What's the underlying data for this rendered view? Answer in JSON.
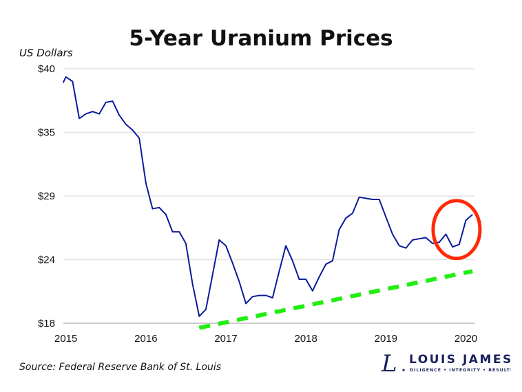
{
  "chart_data": {
    "type": "line",
    "title": "5-Year Uranium Prices",
    "ylabel": "US Dollars",
    "xlabel": "",
    "source": "Source: Federal Reserve Bank of St. Louis",
    "x_start": "2015-01",
    "x_frequency": "monthly",
    "xlim": [
      "2015-01",
      "2020-02"
    ],
    "ylim": [
      18,
      40
    ],
    "x_ticks": [
      "2015",
      "2016",
      "2017",
      "2018",
      "2019",
      "2020"
    ],
    "y_ticks": [
      {
        "value": 18,
        "label": "$18"
      },
      {
        "value": 23.5,
        "label": "$24"
      },
      {
        "value": 29,
        "label": "$29"
      },
      {
        "value": 34.5,
        "label": "$35"
      },
      {
        "value": 40,
        "label": "$40"
      }
    ],
    "grid": "horizontal",
    "series": [
      {
        "color": "#0a1a9c",
        "values": [
          39.3,
          38.9,
          35.7,
          36.1,
          36.3,
          36.1,
          37.1,
          37.2,
          36.0,
          35.2,
          34.7,
          34.0,
          30.1,
          27.9,
          28.0,
          27.4,
          25.9,
          25.9,
          24.9,
          21.4,
          18.6,
          19.2,
          22.2,
          25.2,
          24.7,
          23.2,
          21.6,
          19.7,
          20.3,
          20.4,
          20.4,
          20.2,
          22.5,
          24.7,
          23.4,
          21.8,
          21.8,
          20.8,
          22.0,
          23.1,
          23.4,
          26.1,
          27.1,
          27.5,
          28.9,
          28.8,
          28.7,
          28.7,
          27.2,
          25.7,
          24.7,
          24.5,
          25.2,
          25.3,
          25.4,
          24.9,
          25.0,
          25.7,
          24.6,
          24.8,
          26.9,
          27.4
        ]
      }
    ],
    "annotations": [
      {
        "type": "trendline",
        "style": "dashed",
        "color": "#22ee11",
        "from": {
          "x": "2016-09",
          "y": 17.6
        },
        "to": {
          "x": "2020-02",
          "y": 22.5
        }
      },
      {
        "type": "ellipse",
        "color": "#ff2a0a",
        "center": {
          "x": "2019-12",
          "y": 26.1
        }
      }
    ]
  },
  "logo": {
    "name": "LOUIS JAMES",
    "tagline": "DILIGENCE • INTEGRITY • RESULTS",
    "color": "#1a1f5e"
  }
}
